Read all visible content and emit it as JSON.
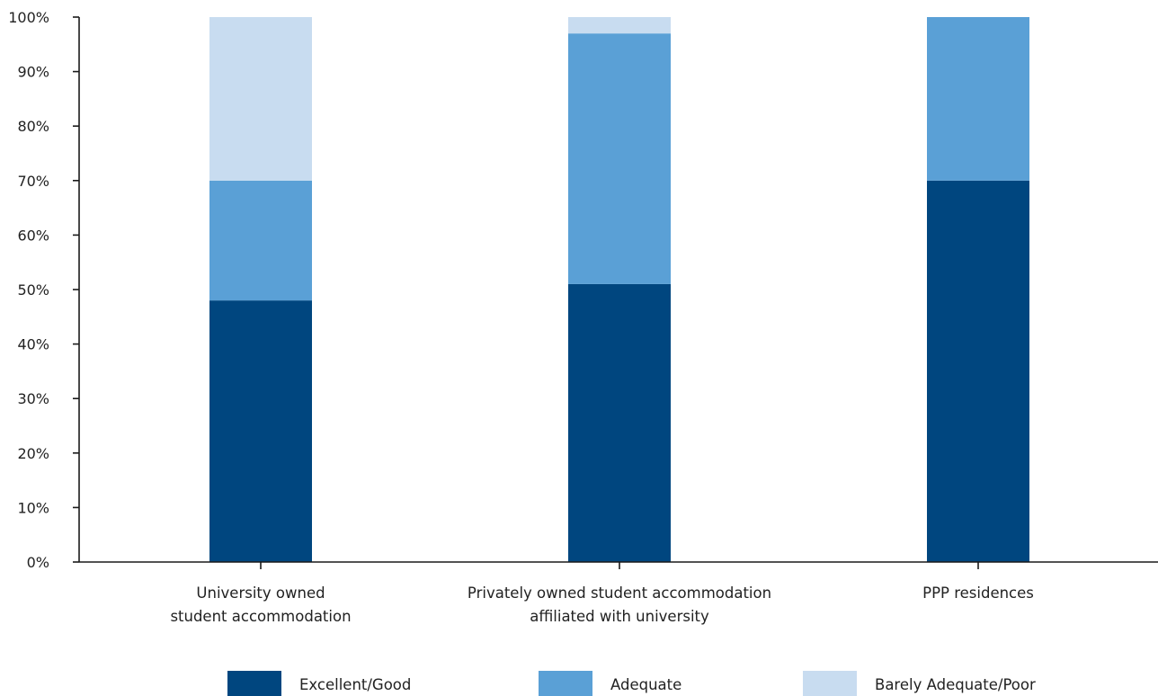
{
  "chart_data": {
    "type": "bar",
    "stacked": true,
    "title": "",
    "xlabel": "",
    "ylabel": "",
    "ylim": [
      0,
      100
    ],
    "yticks": [
      "0%",
      "10%",
      "20%",
      "30%",
      "40%",
      "50%",
      "60%",
      "70%",
      "80%",
      "90%",
      "100%"
    ],
    "categories": [
      [
        "University owned",
        "student accommodation"
      ],
      [
        "Privately owned student accommodation",
        "affiliated with university"
      ],
      [
        "PPP residences"
      ]
    ],
    "series": [
      {
        "name": "Excellent/Good",
        "color": "#00467f",
        "values": [
          48,
          51,
          70
        ]
      },
      {
        "name": "Adequate",
        "color": "#5aa0d6",
        "values": [
          22,
          46,
          30
        ]
      },
      {
        "name": "Barely Adequate/Poor",
        "color": "#c8dcf0",
        "values": [
          30,
          3,
          0
        ]
      }
    ],
    "legend_position": "bottom",
    "grid": false
  }
}
